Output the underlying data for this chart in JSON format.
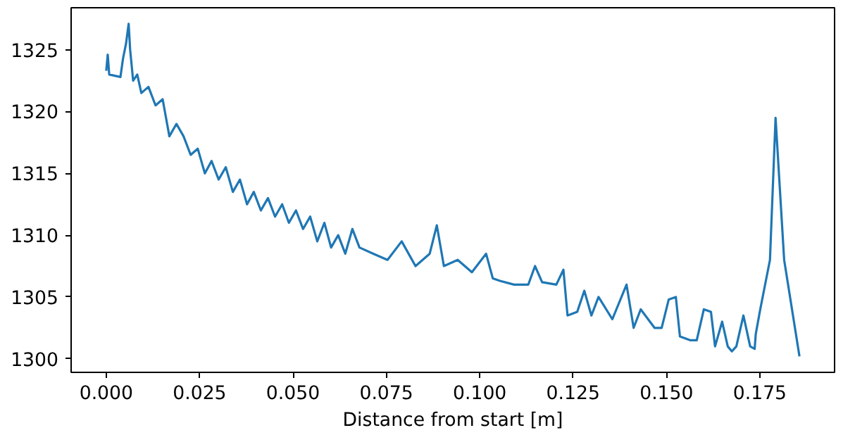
{
  "chart_data": {
    "type": "line",
    "xlabel": "Distance from start [m]",
    "grid": false,
    "marker": "none",
    "line_style": "solid",
    "xlim": [
      -0.0094,
      0.195
    ],
    "ylim": [
      1298.9,
      1328.4
    ],
    "xticks": [
      {
        "value": 0,
        "label": "0.000"
      },
      {
        "value": 0.025,
        "label": "0.025"
      },
      {
        "value": 0.05,
        "label": "0.050"
      },
      {
        "value": 0.075,
        "label": "0.075"
      },
      {
        "value": 0.1,
        "label": "0.100"
      },
      {
        "value": 0.125,
        "label": "0.125"
      },
      {
        "value": 0.15,
        "label": "0.150"
      },
      {
        "value": 0.175,
        "label": "0.175"
      }
    ],
    "yticks": [
      1300,
      1305,
      1310,
      1315,
      1320,
      1325
    ],
    "series": [
      {
        "color": "#1f77b4",
        "x": [
          0,
          0.0004,
          0.0008,
          0.0038,
          0.0045,
          0.0053,
          0.006,
          0.0064,
          0.0072,
          0.0083,
          0.0094,
          0.0113,
          0.0132,
          0.0151,
          0.0169,
          0.0188,
          0.0207,
          0.0226,
          0.0245,
          0.0264,
          0.0282,
          0.0301,
          0.032,
          0.0339,
          0.0358,
          0.0377,
          0.0395,
          0.0414,
          0.0433,
          0.0452,
          0.0471,
          0.0489,
          0.0508,
          0.0527,
          0.0546,
          0.0565,
          0.0584,
          0.0602,
          0.0621,
          0.064,
          0.0659,
          0.0678,
          0.0715,
          0.0753,
          0.0791,
          0.0828,
          0.0866,
          0.0885,
          0.0904,
          0.0941,
          0.0979,
          0.1017,
          0.1035,
          0.1054,
          0.1092,
          0.113,
          0.1148,
          0.1167,
          0.1205,
          0.1224,
          0.1235,
          0.1261,
          0.128,
          0.1299,
          0.1318,
          0.1355,
          0.1393,
          0.1412,
          0.1431,
          0.1468,
          0.1487,
          0.1506,
          0.1525,
          0.1536,
          0.1563,
          0.1581,
          0.16,
          0.1619,
          0.163,
          0.1649,
          0.1664,
          0.1675,
          0.1687,
          0.1706,
          0.1724,
          0.1736,
          0.1739,
          0.1751,
          0.1777,
          0.1792,
          0.1815,
          0.1856
        ],
        "values": [
          1323.3,
          1324.6,
          1323,
          1322.8,
          1324.3,
          1325.5,
          1327.1,
          1325,
          1322.5,
          1323,
          1321.5,
          1322,
          1320.5,
          1321,
          1318,
          1319,
          1318,
          1316.5,
          1317,
          1315,
          1316,
          1314.5,
          1315.5,
          1313.5,
          1314.5,
          1312.5,
          1313.5,
          1312,
          1313,
          1311.5,
          1312.5,
          1311,
          1312,
          1310.5,
          1311.5,
          1309.5,
          1311,
          1309,
          1310,
          1308.5,
          1310.5,
          1309,
          1308.5,
          1308,
          1309.5,
          1307.5,
          1308.5,
          1310.8,
          1307.5,
          1308,
          1307,
          1308.5,
          1306.5,
          1306.3,
          1306,
          1306,
          1307.5,
          1306.2,
          1306,
          1307.2,
          1303.5,
          1303.8,
          1305.5,
          1303.5,
          1305,
          1303.2,
          1306,
          1302.5,
          1304,
          1302.5,
          1302.5,
          1304.8,
          1305,
          1301.8,
          1301.5,
          1301.5,
          1304,
          1303.8,
          1301,
          1303,
          1301,
          1300.6,
          1301,
          1303.5,
          1301,
          1300.8,
          1302,
          1304,
          1308,
          1319.5,
          1308,
          1300.2
        ]
      }
    ]
  }
}
